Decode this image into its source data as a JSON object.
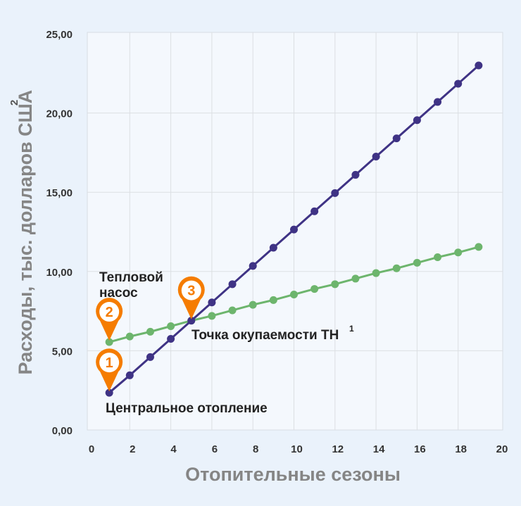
{
  "chart_data": {
    "type": "line",
    "xlabel": "Отопительные сезоны",
    "ylabel": "Расходы, тыс. долларов США",
    "ylabel_sup": "2",
    "xlim": [
      0,
      20
    ],
    "ylim": [
      0,
      25
    ],
    "grid": true,
    "x_ticks": [
      "0",
      "2",
      "4",
      "6",
      "8",
      "10",
      "12",
      "14",
      "16",
      "18",
      "20"
    ],
    "y_ticks": [
      "0,00",
      "5,00",
      "10,00",
      "15,00",
      "20,00",
      "25,00"
    ],
    "x": [
      1,
      2,
      3,
      4,
      5,
      6,
      7,
      8,
      9,
      10,
      11,
      12,
      13,
      14,
      15,
      16,
      17,
      18,
      19
    ],
    "series": [
      {
        "name": "Центральное отопление",
        "color": "#3f3385",
        "values": [
          2.35,
          3.45,
          4.6,
          5.75,
          6.9,
          8.05,
          9.2,
          10.35,
          11.5,
          12.65,
          13.8,
          14.95,
          16.1,
          17.25,
          18.4,
          19.55,
          20.7,
          21.85,
          23.0
        ]
      },
      {
        "name": "Тепловой насос",
        "color": "#6db56d",
        "values": [
          5.55,
          5.9,
          6.2,
          6.55,
          6.9,
          7.2,
          7.55,
          7.9,
          8.2,
          8.55,
          8.9,
          9.2,
          9.55,
          9.9,
          10.2,
          10.55,
          10.9,
          11.2,
          11.55
        ]
      }
    ],
    "annotations": [
      {
        "marker": "1",
        "x": 1,
        "y": 2.35
      },
      {
        "marker": "2",
        "x": 1,
        "y": 5.55
      },
      {
        "marker": "3",
        "x": 5,
        "y": 6.9,
        "label": "Точка окупаемости ТН",
        "label_sup": "1"
      }
    ],
    "series_labels": {
      "heat_pump_line1": "Тепловой",
      "heat_pump_line2": "насос",
      "central": "Центральное отопление"
    },
    "marker_color": "#f57c00"
  }
}
